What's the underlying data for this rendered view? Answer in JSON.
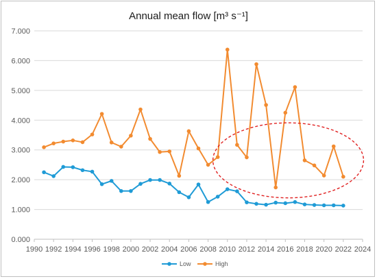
{
  "chart_data": {
    "type": "line",
    "title": "Annual mean flow [m³ s⁻¹]",
    "xlabel": "",
    "ylabel": "",
    "xlim": [
      1990,
      2024
    ],
    "ylim": [
      0,
      7
    ],
    "x_ticks": [
      "1990",
      "1992",
      "1994",
      "1996",
      "1998",
      "2000",
      "2002",
      "2004",
      "2006",
      "2008",
      "2010",
      "2012",
      "2014",
      "2016",
      "2018",
      "2020",
      "2022",
      "2024"
    ],
    "y_ticks": [
      "0.000",
      "1.000",
      "2.000",
      "3.000",
      "4.000",
      "5.000",
      "6.000",
      "7.000"
    ],
    "grid": "horizontal",
    "legend": "bottom",
    "x": [
      1991,
      1992,
      1993,
      1994,
      1995,
      1996,
      1997,
      1998,
      1999,
      2000,
      2001,
      2002,
      2003,
      2004,
      2005,
      2006,
      2007,
      2008,
      2009,
      2010,
      2011,
      2012,
      2013,
      2014,
      2015,
      2016,
      2017,
      2018,
      2019,
      2020,
      2021,
      2022
    ],
    "series": [
      {
        "name": "Low",
        "color": "#1f9bd6",
        "values": [
          2.25,
          2.12,
          2.43,
          2.42,
          2.32,
          2.27,
          1.85,
          1.96,
          1.62,
          1.62,
          1.86,
          1.99,
          1.99,
          1.87,
          1.58,
          1.41,
          1.84,
          1.25,
          1.43,
          1.68,
          1.61,
          1.24,
          1.19,
          1.16,
          1.23,
          1.21,
          1.25,
          1.17,
          1.15,
          1.14,
          1.14,
          1.13
        ]
      },
      {
        "name": "High",
        "color": "#f28b30",
        "values": [
          3.09,
          3.22,
          3.28,
          3.32,
          3.26,
          3.52,
          4.21,
          3.25,
          3.11,
          3.48,
          4.36,
          3.37,
          2.93,
          2.95,
          2.13,
          3.63,
          3.05,
          2.5,
          2.76,
          6.37,
          3.17,
          2.75,
          5.88,
          4.51,
          1.74,
          4.25,
          5.11,
          2.65,
          2.48,
          2.14,
          3.12,
          2.1
        ]
      }
    ],
    "annotation": {
      "shape": "dashed-ellipse",
      "color": "#e02020",
      "center": [
        2016.3,
        2.65
      ],
      "radius_x": 7.8,
      "radius_y": 1.26
    }
  }
}
